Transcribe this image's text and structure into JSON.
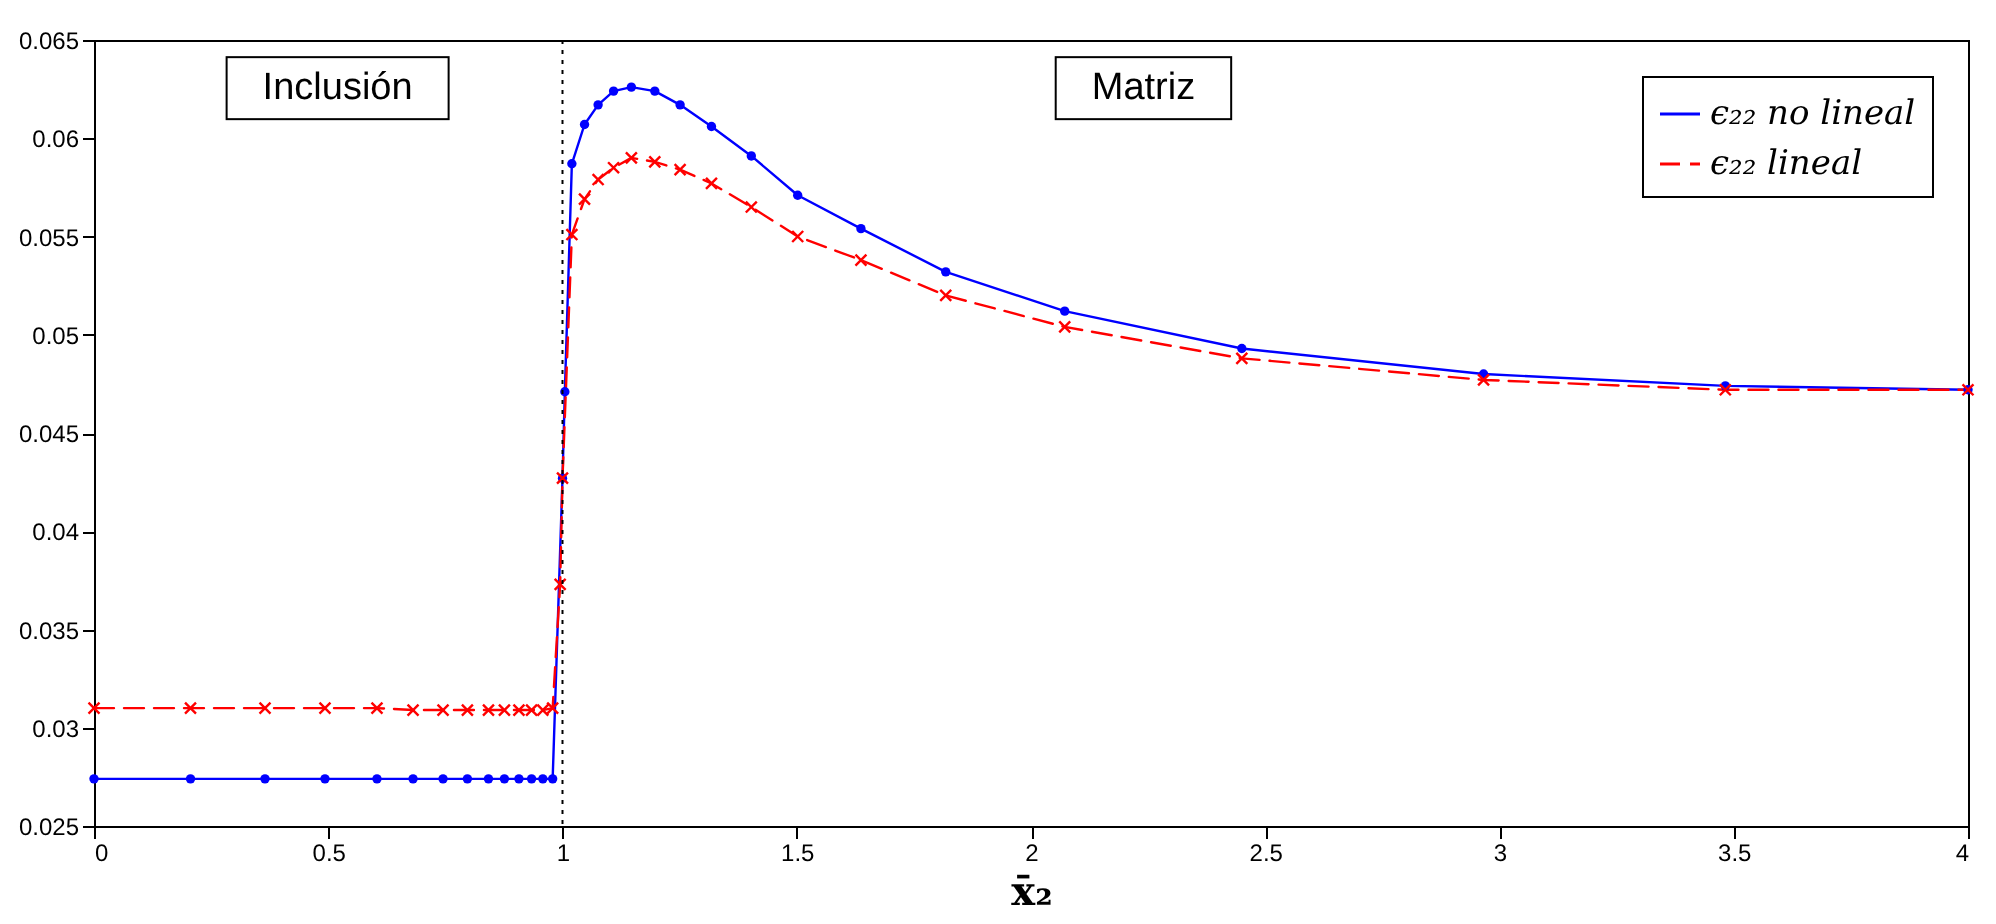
{
  "chart_data": {
    "type": "line",
    "xlabel": "x̄₂",
    "xlim": [
      0,
      4
    ],
    "xticks": [
      0,
      0.5,
      1,
      1.5,
      2,
      2.5,
      3,
      3.5,
      4
    ],
    "ylim": [
      0.025,
      0.065
    ],
    "yticks": [
      0.025,
      0.03,
      0.035,
      0.04,
      0.045,
      0.05,
      0.055,
      0.06,
      0.065
    ],
    "grid": false,
    "legend": "top right",
    "series": [
      {
        "name": "ϵ₂₂ no lineal",
        "color": "#0000ff",
        "marker": "circle",
        "line_style": "solid",
        "x": [
          0,
          0.206,
          0.365,
          0.493,
          0.604,
          0.681,
          0.745,
          0.797,
          0.842,
          0.876,
          0.907,
          0.934,
          0.958,
          0.979,
          1.0,
          1.005,
          1.02,
          1.047,
          1.076,
          1.109,
          1.147,
          1.197,
          1.251,
          1.318,
          1.403,
          1.502,
          1.637,
          1.818,
          2.072,
          2.45,
          2.966,
          3.482,
          4.0
        ],
        "values": [
          0.0274,
          0.0274,
          0.0274,
          0.0274,
          0.0274,
          0.0274,
          0.0274,
          0.0274,
          0.0274,
          0.0274,
          0.0274,
          0.0274,
          0.0274,
          0.0274,
          0.0427,
          0.0471,
          0.0587,
          0.0607,
          0.0617,
          0.0624,
          0.0626,
          0.0624,
          0.0617,
          0.0606,
          0.0591,
          0.0571,
          0.0554,
          0.0532,
          0.0512,
          0.0493,
          0.048,
          0.0474,
          0.0472
        ]
      },
      {
        "name": "ϵ₂₂ lineal",
        "color": "#ff0000",
        "marker": "cross",
        "line_style": "dashed",
        "x": [
          0,
          0.206,
          0.365,
          0.493,
          0.604,
          0.681,
          0.745,
          0.797,
          0.842,
          0.876,
          0.907,
          0.934,
          0.958,
          0.979,
          0.995,
          1.0,
          1.02,
          1.047,
          1.076,
          1.109,
          1.147,
          1.197,
          1.251,
          1.318,
          1.403,
          1.502,
          1.637,
          1.818,
          2.072,
          2.45,
          2.966,
          3.482,
          4.0
        ],
        "values": [
          0.031,
          0.031,
          0.031,
          0.031,
          0.031,
          0.0309,
          0.0309,
          0.0309,
          0.0309,
          0.0309,
          0.0309,
          0.0309,
          0.0309,
          0.031,
          0.0373,
          0.0427,
          0.0551,
          0.0569,
          0.0579,
          0.0585,
          0.059,
          0.0588,
          0.0584,
          0.0577,
          0.0565,
          0.055,
          0.0538,
          0.052,
          0.0504,
          0.0488,
          0.0477,
          0.0472,
          0.0472
        ]
      }
    ],
    "ref_lines": [
      {
        "axis": "x",
        "value": 1,
        "color": "#000000",
        "line_style": "dotted"
      }
    ],
    "annotations": [
      "Inclusión",
      "Matriz"
    ]
  }
}
